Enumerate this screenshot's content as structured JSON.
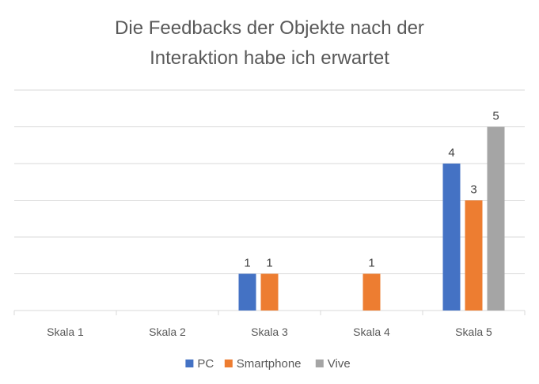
{
  "chart_data": {
    "type": "bar",
    "title": "Die Feedbacks der Objekte nach der Interaktion habe ich erwartet",
    "title_lines": [
      "Die Feedbacks der Objekte nach der",
      "Interaktion habe ich erwartet"
    ],
    "categories": [
      "Skala 1",
      "Skala 2",
      "Skala 3",
      "Skala 4",
      "Skala 5"
    ],
    "series": [
      {
        "name": "PC",
        "color": "#4472C4",
        "values": [
          0,
          0,
          1,
          0,
          4
        ]
      },
      {
        "name": "Smartphone",
        "color": "#ED7D31",
        "values": [
          0,
          0,
          1,
          1,
          3
        ]
      },
      {
        "name": "Vive",
        "color": "#A5A5A5",
        "values": [
          0,
          0,
          0,
          0,
          5
        ]
      }
    ],
    "ylim": [
      0,
      6
    ],
    "grid": true,
    "legend_position": "bottom",
    "data_labels": true
  }
}
